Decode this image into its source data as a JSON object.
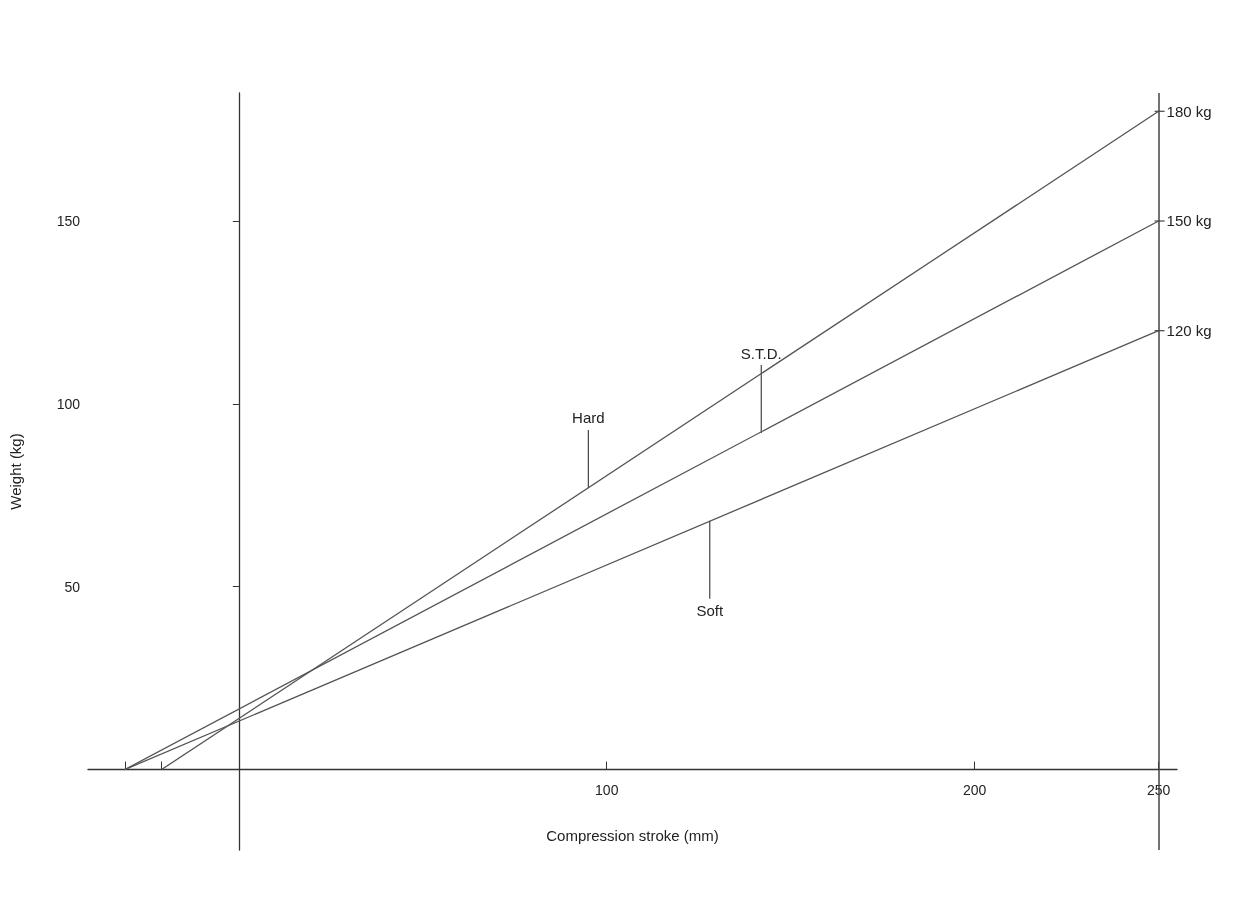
{
  "chart_data": {
    "type": "line",
    "xlabel": "Compression stroke (mm)",
    "ylabel": "Weight (kg)",
    "xlim": [
      -41,
      255
    ],
    "ylim": [
      -22,
      185
    ],
    "xticks": [
      {
        "value": -31,
        "label": null
      },
      {
        "value": -21,
        "label": null
      },
      100,
      200,
      250
    ],
    "yticks": [
      50,
      100,
      150
    ],
    "series": [
      {
        "color": "#555555",
        "x": [
          -21,
          250
        ],
        "values": [
          0,
          180
        ]
      },
      {
        "color": "#555555",
        "x": [
          -31,
          250
        ],
        "values": [
          0,
          150
        ]
      },
      {
        "color": "#555555",
        "x": [
          -31,
          250
        ],
        "values": [
          0,
          120
        ]
      }
    ],
    "ref_lines": [
      {
        "axis": "x",
        "value": 250,
        "color": "#444444"
      }
    ],
    "annotations": [
      {
        "text": "Hard",
        "x": 95,
        "y": 77
      },
      {
        "text": "S.T.D.",
        "x": 142,
        "y": 92
      },
      {
        "text": "Soft",
        "x": 128,
        "y": 68
      },
      {
        "text": "180 kg",
        "x": 250,
        "y": 180
      },
      {
        "text": "150 kg",
        "x": 250,
        "y": 150
      },
      {
        "text": "120 kg",
        "x": 250,
        "y": 120
      }
    ],
    "grid": false,
    "marker": "none",
    "line_style": "solid"
  }
}
